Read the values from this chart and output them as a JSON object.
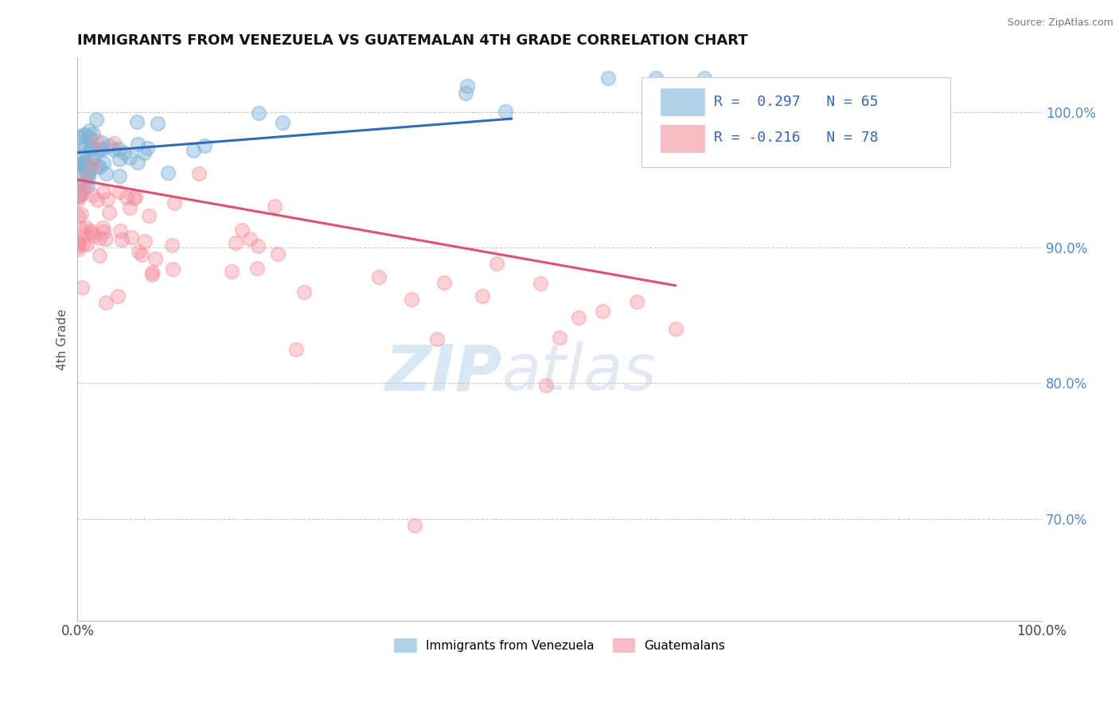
{
  "title": "IMMIGRANTS FROM VENEZUELA VS GUATEMALAN 4TH GRADE CORRELATION CHART",
  "source": "Source: ZipAtlas.com",
  "ylabel": "4th Grade",
  "legend_label_1": "Immigrants from Venezuela",
  "legend_label_2": "Guatemalans",
  "R1": 0.297,
  "N1": 65,
  "R2": -0.216,
  "N2": 78,
  "color_blue": "#7EB3D8",
  "color_pink": "#F4909E",
  "line_color_blue": "#2E6DB4",
  "line_color_pink": "#E05070",
  "x_min": 0.0,
  "x_max": 1.0,
  "y_min": 0.625,
  "y_max": 1.04,
  "right_yticks": [
    0.7,
    0.8,
    0.9,
    1.0
  ],
  "right_yticklabels": [
    "70.0%",
    "80.0%",
    "90.0%",
    "100.0%"
  ],
  "watermark_zip": "ZIP",
  "watermark_atlas": "atlas",
  "blue_trend_x": [
    0.0,
    0.45
  ],
  "blue_trend_y": [
    0.97,
    0.995
  ],
  "pink_trend_x": [
    0.0,
    0.62
  ],
  "pink_trend_y": [
    0.95,
    0.872
  ]
}
